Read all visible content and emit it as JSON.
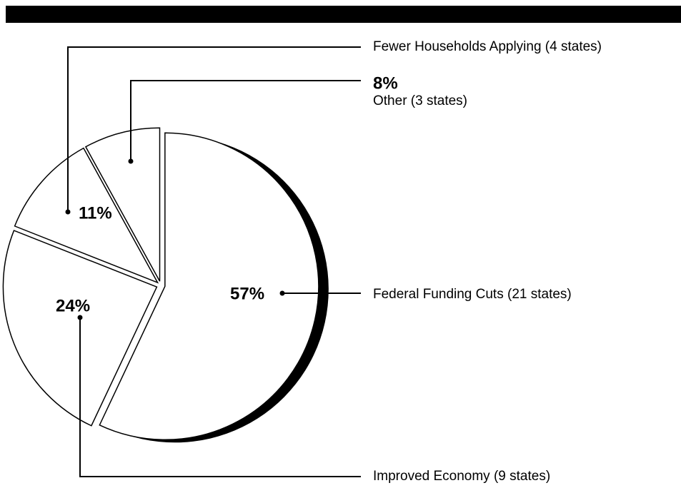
{
  "chart_data": {
    "type": "pie",
    "categories": [
      "Other (3 states)",
      "Fewer Households Applying (4 states)",
      "Improved Economy (9 states)",
      "Federal Funding Cuts (21 states)"
    ],
    "values": [
      8,
      11,
      24,
      57
    ],
    "value_labels": [
      "8%",
      "11%",
      "24%",
      "57%"
    ],
    "color": "#ffffff",
    "edge_color": "#000000"
  }
}
